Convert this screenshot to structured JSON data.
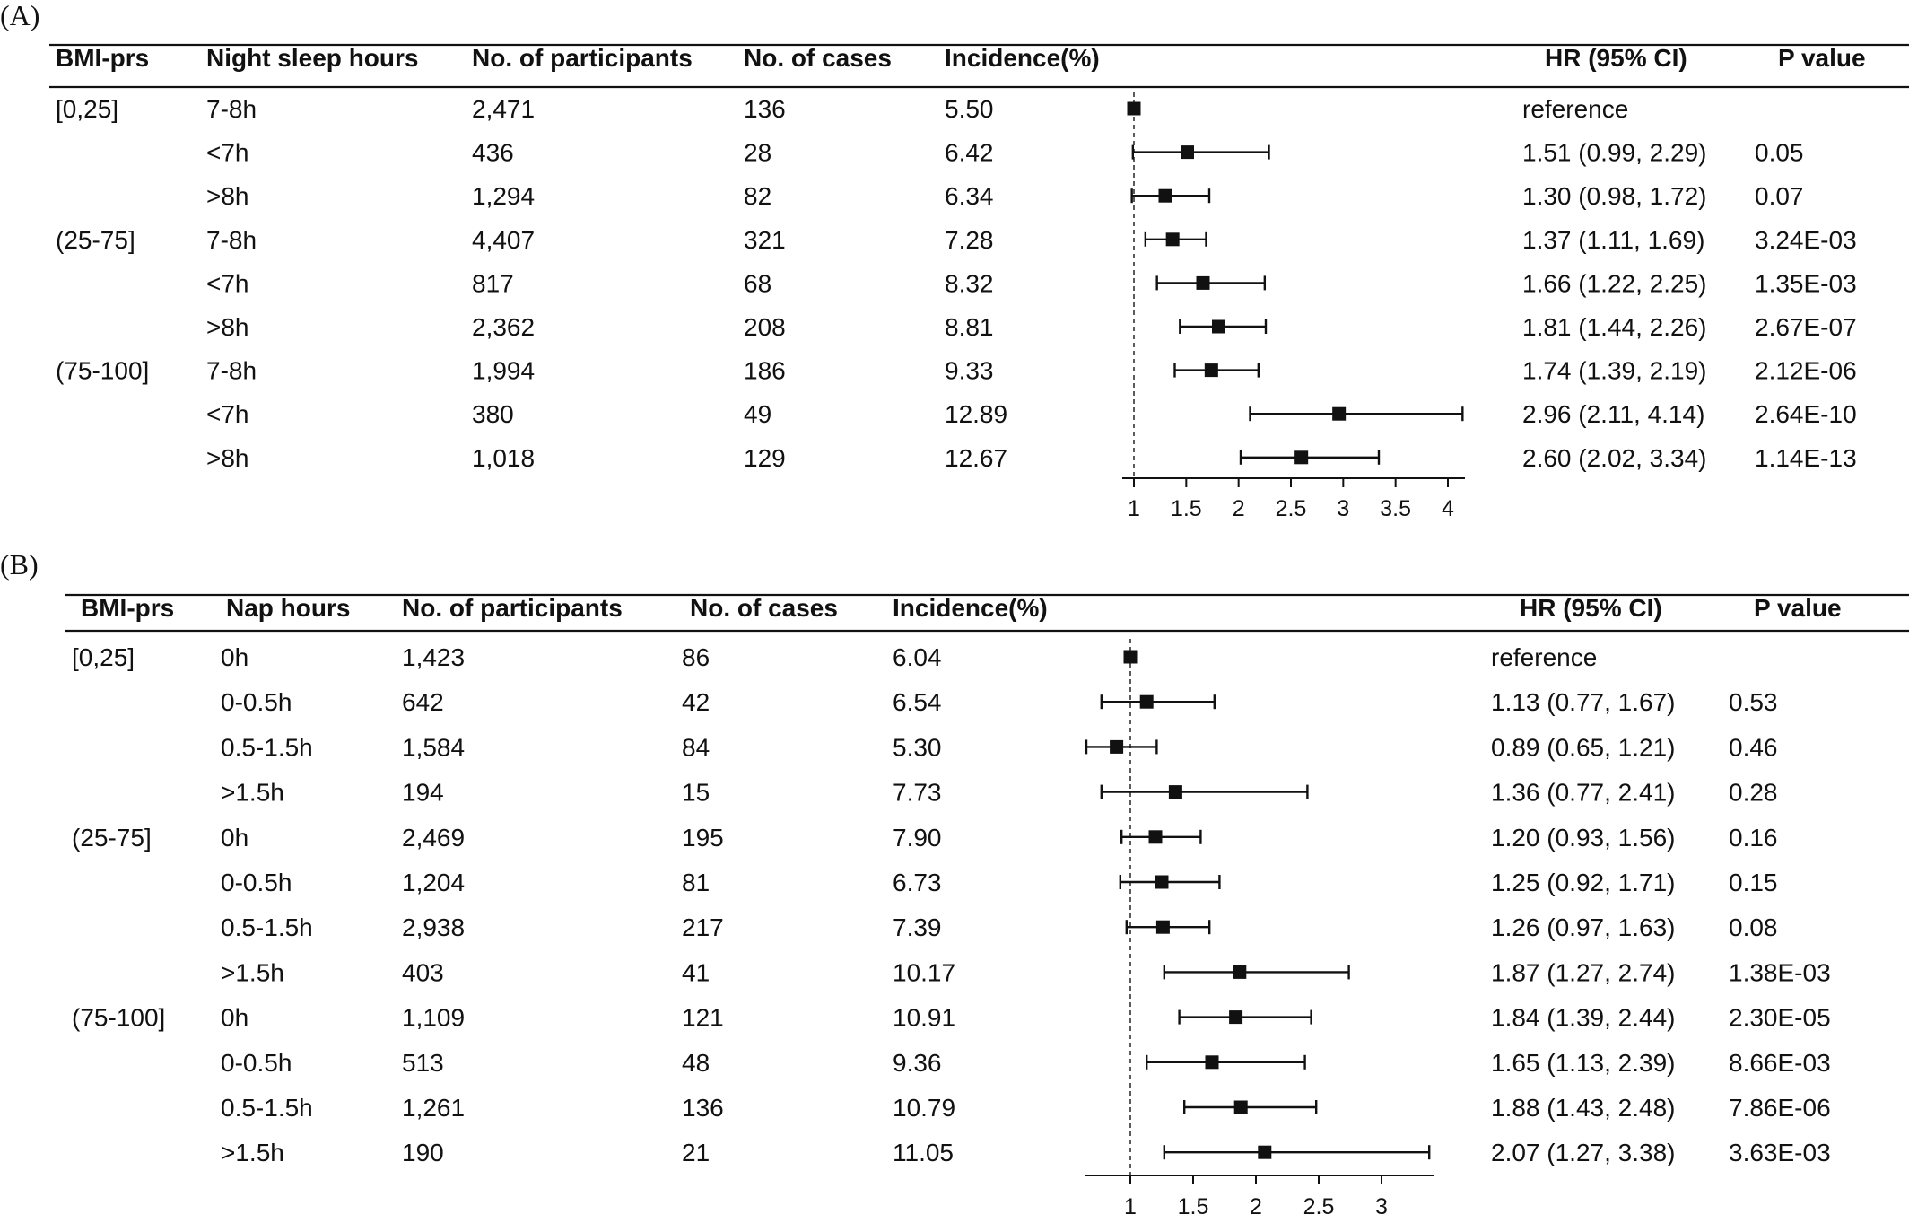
{
  "chart_data": [
    {
      "type": "forest",
      "panel_label": "(A)",
      "columns": {
        "group": "BMI-prs",
        "category": "Night sleep hours",
        "participants": "No. of participants",
        "cases": "No. of cases",
        "incidence": "Incidence(%)",
        "hr_ci": "HR (95% CI)",
        "pvalue": "P value"
      },
      "reference_line": 1,
      "xlim": [
        1,
        4.15
      ],
      "xticks": [
        1,
        1.5,
        2,
        2.5,
        3,
        3.5,
        4
      ],
      "xtick_labels": [
        "1",
        "1.5",
        "2",
        "2.5",
        "3",
        "3.5",
        "4"
      ],
      "rows": [
        {
          "group": "[0,25]",
          "category": "7-8h",
          "participants": "2,471",
          "cases": "136",
          "incidence": "5.50",
          "hr_text": "reference",
          "p": "",
          "hr": 1.0,
          "lo": null,
          "hi": null
        },
        {
          "group": "",
          "category": "<7h",
          "participants": "436",
          "cases": "28",
          "incidence": "6.42",
          "hr_text": "1.51 (0.99, 2.29)",
          "p": "0.05",
          "hr": 1.51,
          "lo": 0.99,
          "hi": 2.29
        },
        {
          "group": "",
          "category": ">8h",
          "participants": "1,294",
          "cases": "82",
          "incidence": "6.34",
          "hr_text": "1.30 (0.98, 1.72)",
          "p": "0.07",
          "hr": 1.3,
          "lo": 0.98,
          "hi": 1.72
        },
        {
          "group": "(25-75]",
          "category": "7-8h",
          "participants": "4,407",
          "cases": "321",
          "incidence": "7.28",
          "hr_text": "1.37 (1.11, 1.69)",
          "p": "3.24E-03",
          "hr": 1.37,
          "lo": 1.11,
          "hi": 1.69
        },
        {
          "group": "",
          "category": "<7h",
          "participants": "817",
          "cases": "68",
          "incidence": "8.32",
          "hr_text": "1.66 (1.22, 2.25)",
          "p": "1.35E-03",
          "hr": 1.66,
          "lo": 1.22,
          "hi": 2.25
        },
        {
          "group": "",
          "category": ">8h",
          "participants": "2,362",
          "cases": "208",
          "incidence": "8.81",
          "hr_text": "1.81 (1.44, 2.26)",
          "p": "2.67E-07",
          "hr": 1.81,
          "lo": 1.44,
          "hi": 2.26
        },
        {
          "group": "(75-100]",
          "category": "7-8h",
          "participants": "1,994",
          "cases": "186",
          "incidence": "9.33",
          "hr_text": "1.74 (1.39, 2.19)",
          "p": "2.12E-06",
          "hr": 1.74,
          "lo": 1.39,
          "hi": 2.19
        },
        {
          "group": "",
          "category": "<7h",
          "participants": "380",
          "cases": "49",
          "incidence": "12.89",
          "hr_text": "2.96 (2.11, 4.14)",
          "p": "2.64E-10",
          "hr": 2.96,
          "lo": 2.11,
          "hi": 4.14
        },
        {
          "group": "",
          "category": ">8h",
          "participants": "1,018",
          "cases": "129",
          "incidence": "12.67",
          "hr_text": "2.60 (2.02, 3.34)",
          "p": "1.14E-13",
          "hr": 2.6,
          "lo": 2.02,
          "hi": 3.34
        }
      ]
    },
    {
      "type": "forest",
      "panel_label": "(B)",
      "columns": {
        "group": "BMI-prs",
        "category": "Nap hours",
        "participants": "No. of participants",
        "cases": "No. of cases",
        "incidence": "Incidence(%)",
        "hr_ci": "HR (95% CI)",
        "pvalue": "P value"
      },
      "reference_line": 1,
      "xlim": [
        0.65,
        3.4
      ],
      "xticks": [
        1,
        1.5,
        2,
        2.5,
        3
      ],
      "xtick_labels": [
        "1",
        "1.5",
        "2",
        "2.5",
        "3"
      ],
      "rows": [
        {
          "group": "[0,25]",
          "category": "0h",
          "participants": "1,423",
          "cases": "86",
          "incidence": "6.04",
          "hr_text": "reference",
          "p": "",
          "hr": 1.0,
          "lo": null,
          "hi": null
        },
        {
          "group": "",
          "category": "0-0.5h",
          "participants": "642",
          "cases": "42",
          "incidence": "6.54",
          "hr_text": "1.13 (0.77, 1.67)",
          "p": "0.53",
          "hr": 1.13,
          "lo": 0.77,
          "hi": 1.67
        },
        {
          "group": "",
          "category": "0.5-1.5h",
          "participants": "1,584",
          "cases": "84",
          "incidence": "5.30",
          "hr_text": "0.89 (0.65, 1.21)",
          "p": "0.46",
          "hr": 0.89,
          "lo": 0.65,
          "hi": 1.21
        },
        {
          "group": "",
          "category": ">1.5h",
          "participants": "194",
          "cases": "15",
          "incidence": "7.73",
          "hr_text": "1.36 (0.77, 2.41)",
          "p": "0.28",
          "hr": 1.36,
          "lo": 0.77,
          "hi": 2.41
        },
        {
          "group": "(25-75]",
          "category": "0h",
          "participants": "2,469",
          "cases": "195",
          "incidence": "7.90",
          "hr_text": "1.20 (0.93, 1.56)",
          "p": "0.16",
          "hr": 1.2,
          "lo": 0.93,
          "hi": 1.56
        },
        {
          "group": "",
          "category": "0-0.5h",
          "participants": "1,204",
          "cases": "81",
          "incidence": "6.73",
          "hr_text": "1.25 (0.92, 1.71)",
          "p": "0.15",
          "hr": 1.25,
          "lo": 0.92,
          "hi": 1.71
        },
        {
          "group": "",
          "category": "0.5-1.5h",
          "participants": "2,938",
          "cases": "217",
          "incidence": "7.39",
          "hr_text": "1.26 (0.97, 1.63)",
          "p": "0.08",
          "hr": 1.26,
          "lo": 0.97,
          "hi": 1.63
        },
        {
          "group": "",
          "category": ">1.5h",
          "participants": "403",
          "cases": "41",
          "incidence": "10.17",
          "hr_text": "1.87 (1.27, 2.74)",
          "p": "1.38E-03",
          "hr": 1.87,
          "lo": 1.27,
          "hi": 2.74
        },
        {
          "group": "(75-100]",
          "category": "0h",
          "participants": "1,109",
          "cases": "121",
          "incidence": "10.91",
          "hr_text": "1.84 (1.39, 2.44)",
          "p": "2.30E-05",
          "hr": 1.84,
          "lo": 1.39,
          "hi": 2.44
        },
        {
          "group": "",
          "category": "0-0.5h",
          "participants": "513",
          "cases": "48",
          "incidence": "9.36",
          "hr_text": "1.65 (1.13, 2.39)",
          "p": "8.66E-03",
          "hr": 1.65,
          "lo": 1.13,
          "hi": 2.39
        },
        {
          "group": "",
          "category": "0.5-1.5h",
          "participants": "1,261",
          "cases": "136",
          "incidence": "10.79",
          "hr_text": "1.88 (1.43, 2.48)",
          "p": "7.86E-06",
          "hr": 1.88,
          "lo": 1.43,
          "hi": 2.48
        },
        {
          "group": "",
          "category": ">1.5h",
          "participants": "190",
          "cases": "21",
          "incidence": "11.05",
          "hr_text": "2.07 (1.27, 3.38)",
          "p": "3.63E-03",
          "hr": 2.07,
          "lo": 1.27,
          "hi": 3.38
        }
      ]
    }
  ]
}
